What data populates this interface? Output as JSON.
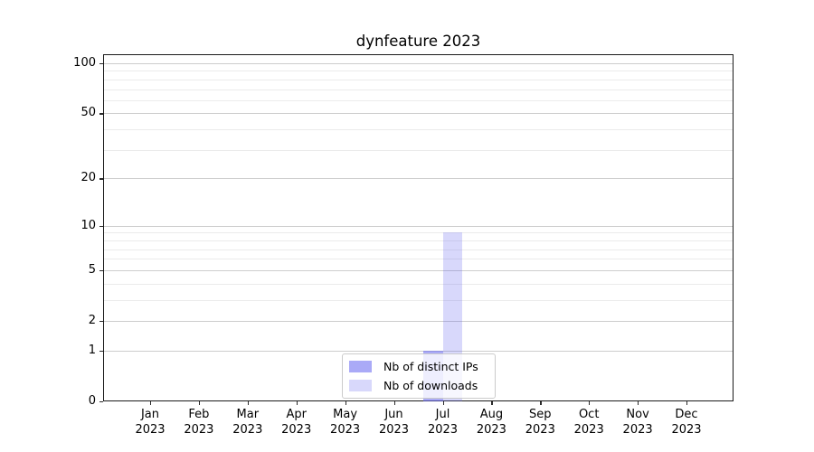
{
  "title": "dynfeature 2023",
  "chart_data": {
    "type": "bar",
    "title": "dynfeature 2023",
    "categories": [
      "Jan",
      "Feb",
      "Mar",
      "Apr",
      "May",
      "Jun",
      "Jul",
      "Aug",
      "Sep",
      "Oct",
      "Nov",
      "Dec"
    ],
    "category_year": "2023",
    "series": [
      {
        "name": "Nb of distinct IPs",
        "color": "rgba(100,100,240,0.55)",
        "values": [
          0,
          0,
          0,
          0,
          0,
          0,
          1,
          0,
          0,
          0,
          0,
          0
        ]
      },
      {
        "name": "Nb of downloads",
        "color": "rgba(100,100,240,0.25)",
        "values": [
          0,
          0,
          0,
          0,
          0,
          0,
          9,
          0,
          0,
          0,
          0,
          0
        ]
      }
    ],
    "y_axis": {
      "scale": "log1p",
      "ticks": [
        0,
        1,
        2,
        5,
        10,
        20,
        50,
        100
      ],
      "minor_ticks": [
        3,
        4,
        6,
        7,
        8,
        9,
        30,
        40,
        60,
        70,
        80,
        90
      ],
      "max": 100
    },
    "legend": {
      "position": "lower center"
    },
    "grid": true
  }
}
